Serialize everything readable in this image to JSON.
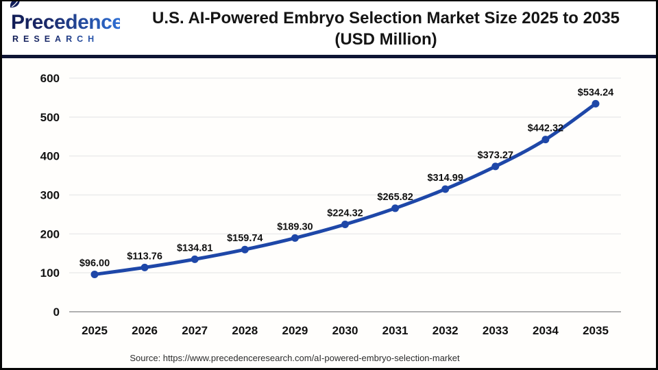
{
  "logo": {
    "brand": "Precedence",
    "subtitle": "RESEARCH"
  },
  "header": {
    "title_line1": "U.S. AI-Powered Embryo Selection Market Size 2025 to 2035",
    "title_line2": "(USD Million)"
  },
  "footer": {
    "source": "Source: https://www.precedenceresearch.com/aI-powered-embryo-selection-market"
  },
  "colors": {
    "line": "#1e47a8",
    "marker": "#1e47a8",
    "grid": "#ebebeb",
    "axis_line": "#b0b0b0",
    "divider_navy": "#0d1434",
    "label_text": "#111111"
  },
  "chart_data": {
    "type": "line",
    "title": "U.S. AI-Powered Embryo Selection Market Size 2025 to 2035 (USD Million)",
    "categories": [
      "2025",
      "2026",
      "2027",
      "2028",
      "2029",
      "2030",
      "2031",
      "2032",
      "2033",
      "2034",
      "2035"
    ],
    "values": [
      96.0,
      113.76,
      134.81,
      159.74,
      189.3,
      224.32,
      265.82,
      314.99,
      373.27,
      442.32,
      534.24
    ],
    "value_prefix": "$",
    "value_decimals": 2,
    "ylim": [
      0,
      600
    ],
    "yticks": [
      0,
      100,
      200,
      300,
      400,
      500,
      600
    ],
    "xlabel": "",
    "ylabel": "",
    "grid": true,
    "legend": false,
    "marker": "circle"
  }
}
